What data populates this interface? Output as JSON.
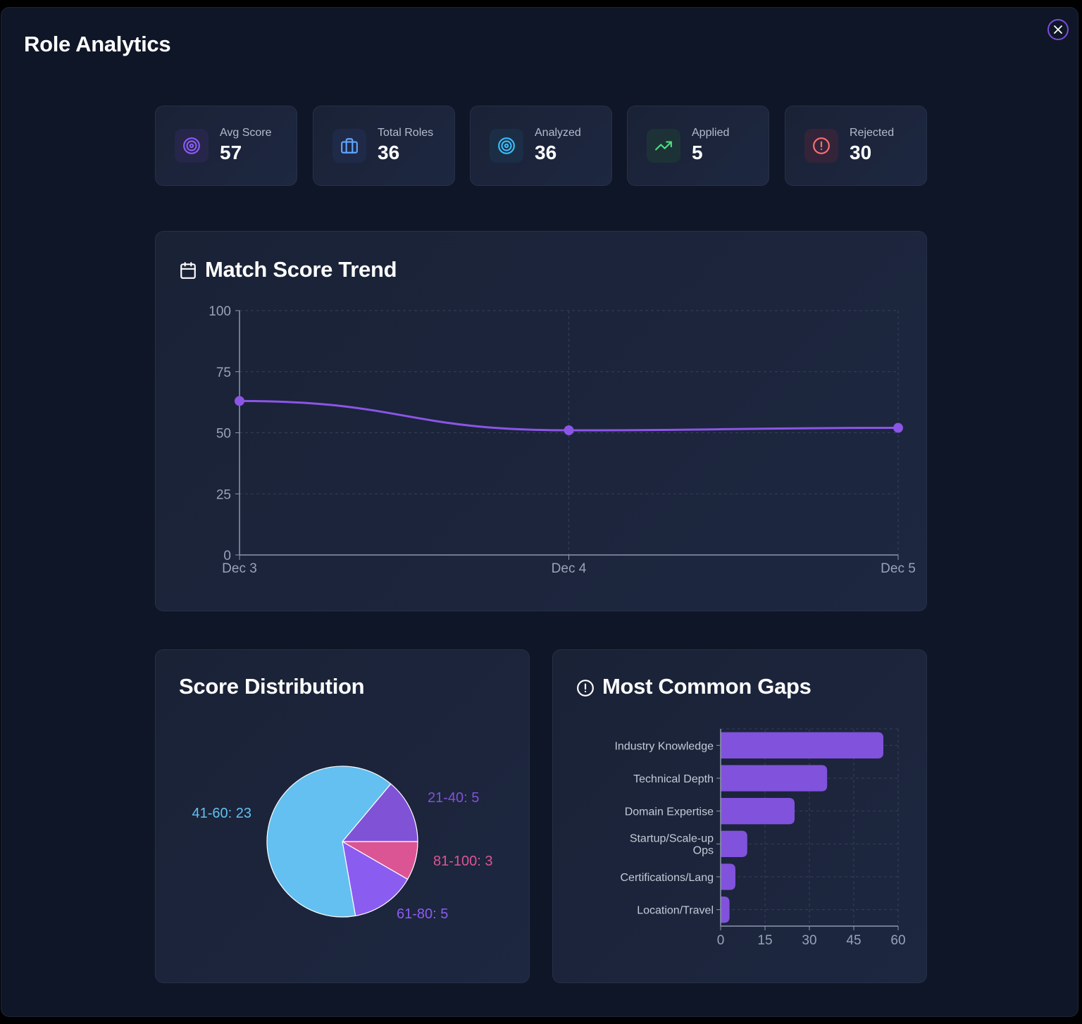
{
  "modal": {
    "title": "Role Analytics"
  },
  "stats": [
    {
      "label": "Avg Score",
      "value": "57",
      "icon": "target-icon",
      "color": "#8b5cf6",
      "bg": "#26264a"
    },
    {
      "label": "Total Roles",
      "value": "36",
      "icon": "briefcase-icon",
      "color": "#60a5fa",
      "bg": "#1e2a48"
    },
    {
      "label": "Analyzed",
      "value": "36",
      "icon": "target-icon",
      "color": "#38bdf8",
      "bg": "#1b2e46"
    },
    {
      "label": "Applied",
      "value": "5",
      "icon": "trending-up-icon",
      "color": "#4ade80",
      "bg": "#1d3236"
    },
    {
      "label": "Rejected",
      "value": "30",
      "icon": "alert-circle-icon",
      "color": "#f87171",
      "bg": "#33243a"
    }
  ],
  "trend": {
    "title": "Match Score Trend",
    "icon": "calendar-icon"
  },
  "distribution": {
    "title": "Score Distribution"
  },
  "gaps": {
    "title": "Most Common Gaps",
    "icon": "alert-circle-icon"
  },
  "colors": {
    "accent": "#7c4ddb",
    "line": "#8b55e6",
    "bar": "#8152dc"
  },
  "chart_data": [
    {
      "type": "line",
      "title": "Match Score Trend",
      "x": [
        "Dec 3",
        "Dec 4",
        "Dec 5"
      ],
      "series": [
        {
          "values": [
            63,
            51,
            52
          ]
        }
      ],
      "ylim": [
        0,
        100
      ],
      "yticks": [
        0,
        25,
        50,
        75,
        100
      ],
      "grid": true
    },
    {
      "type": "pie",
      "title": "Score Distribution",
      "slices": [
        {
          "label": "21-40: 5",
          "value": 5,
          "color": "#8052d6"
        },
        {
          "label": "81-100: 3",
          "value": 3,
          "color": "#db5594"
        },
        {
          "label": "61-80: 5",
          "value": 5,
          "color": "#8b5cf0"
        },
        {
          "label": "41-60: 23",
          "value": 23,
          "color": "#63c0f0"
        }
      ]
    },
    {
      "type": "bar",
      "orientation": "horizontal",
      "title": "Most Common Gaps",
      "categories": [
        "Industry Knowledge",
        "Technical Depth",
        "Domain Expertise",
        "Startup/Scale-up Ops",
        "Certifications/Lang",
        "Location/Travel"
      ],
      "values": [
        55,
        36,
        25,
        9,
        5,
        3
      ],
      "xlim": [
        0,
        60
      ],
      "xticks": [
        0,
        15,
        30,
        45,
        60
      ],
      "grid": true
    }
  ]
}
